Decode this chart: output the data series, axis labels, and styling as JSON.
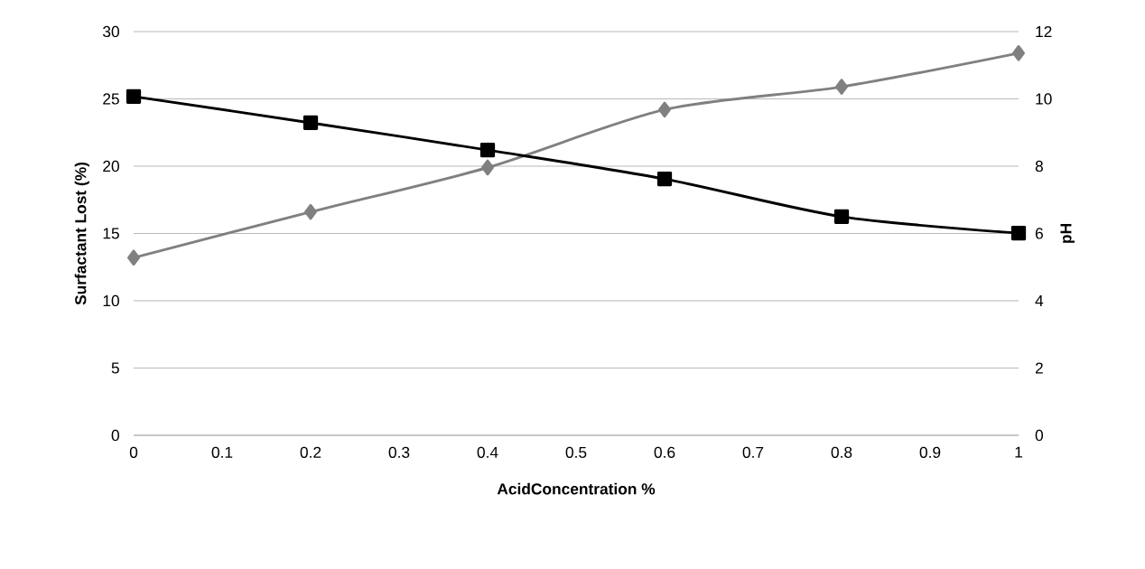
{
  "chart_data": {
    "type": "line",
    "xlabel": "AcidConcentration %",
    "ylabel": "Surfactant Lost (%)",
    "y2label": "pH",
    "x": [
      0,
      0.2,
      0.4,
      0.6,
      0.8,
      1
    ],
    "series": [
      {
        "color": "#808080",
        "marker": "diamond",
        "values": [
          13.2,
          16.6,
          19.9,
          24.2,
          25.9,
          28.4
        ]
      },
      {
        "color": "#000000",
        "marker": "square",
        "axis": "y2",
        "values": [
          10.07,
          9.29,
          8.48,
          7.62,
          6.5,
          6.01
        ]
      }
    ],
    "xlim": [
      0,
      1
    ],
    "xticks": [
      0,
      0.1,
      0.2,
      0.3,
      0.4,
      0.5,
      0.6,
      0.7,
      0.8,
      0.9,
      1
    ],
    "ylim": [
      0,
      30
    ],
    "yticks": [
      0,
      5,
      10,
      15,
      20,
      25,
      30
    ],
    "y2lim": [
      0,
      12
    ],
    "y2ticks": [
      0,
      2,
      4,
      6,
      8,
      10,
      12
    ],
    "grid": "y",
    "line_style": "solid"
  }
}
